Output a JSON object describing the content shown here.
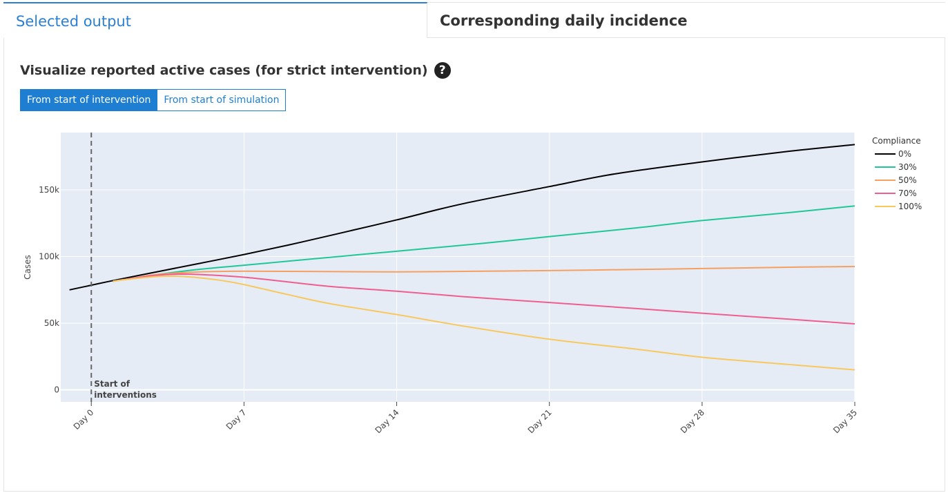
{
  "tabs": [
    {
      "label": "Selected output",
      "active": true
    },
    {
      "label": "Corresponding daily incidence",
      "active": false
    }
  ],
  "title": "Visualize reported active cases (for strict intervention)",
  "help_icon": "question-circle-icon",
  "toggle": {
    "options": [
      "From start of intervention",
      "From start of simulation"
    ],
    "selected": "From start of intervention"
  },
  "colors": {
    "accent": "#1e7fd2",
    "plot_bg": "#e5ecf6"
  },
  "chart_data": {
    "type": "line",
    "ylabel": "Cases",
    "xlim": [
      -1.4,
      35
    ],
    "ylim": [
      -9000,
      193000
    ],
    "x_ticks": [
      0,
      7,
      14,
      21,
      28,
      35
    ],
    "x_tick_labels": [
      "Day 0",
      "Day 7",
      "Day 14",
      "Day 21",
      "Day 28",
      "Day 35"
    ],
    "y_ticks": [
      0,
      50000,
      100000,
      150000
    ],
    "y_tick_labels": [
      "0",
      "50k",
      "100k",
      "150k"
    ],
    "grid": true,
    "legend": {
      "title": "Compliance",
      "position": "top-right outside"
    },
    "annotation": {
      "x": 0,
      "text": [
        "Start of",
        "interventions"
      ],
      "line": "dashed"
    },
    "series": [
      {
        "name": "0%",
        "color": "#000000",
        "x": [
          -1,
          0,
          1,
          3,
          5,
          7,
          9,
          11,
          14,
          17,
          21,
          24,
          28,
          32,
          35
        ],
        "y": [
          75000,
          78500,
          82000,
          88500,
          95000,
          101500,
          108500,
          116000,
          127500,
          139500,
          152500,
          162000,
          171000,
          179000,
          184000
        ]
      },
      {
        "name": "30%",
        "color": "#1fc796",
        "x": [
          1,
          2,
          3,
          5,
          7,
          10,
          14,
          18,
          21,
          25,
          28,
          32,
          35
        ],
        "y": [
          81500,
          84000,
          86500,
          90500,
          93500,
          98000,
          104000,
          110000,
          115000,
          121500,
          127000,
          133000,
          138000
        ]
      },
      {
        "name": "50%",
        "color": "#f5a061",
        "x": [
          1,
          2,
          3,
          5,
          7,
          10,
          14,
          18,
          21,
          25,
          28,
          32,
          35
        ],
        "y": [
          81500,
          84000,
          86500,
          88500,
          89000,
          88800,
          88500,
          89000,
          89500,
          90300,
          91000,
          92000,
          92500
        ]
      },
      {
        "name": "70%",
        "color": "#ef5e8e",
        "x": [
          1,
          2,
          3,
          4,
          5,
          7,
          9,
          11,
          14,
          17,
          21,
          25,
          28,
          32,
          35
        ],
        "y": [
          81500,
          84000,
          86000,
          86800,
          86500,
          84500,
          81000,
          77500,
          74000,
          70000,
          65500,
          61000,
          57500,
          53000,
          49500
        ]
      },
      {
        "name": "100%",
        "color": "#f9c85c",
        "x": [
          1,
          2,
          3,
          4,
          5,
          6,
          7,
          9,
          11,
          14,
          17,
          21,
          25,
          28,
          32,
          35
        ],
        "y": [
          81500,
          83500,
          85000,
          85200,
          84000,
          82000,
          79000,
          71500,
          64500,
          56500,
          48000,
          38000,
          30500,
          24500,
          19000,
          15000
        ]
      }
    ]
  }
}
